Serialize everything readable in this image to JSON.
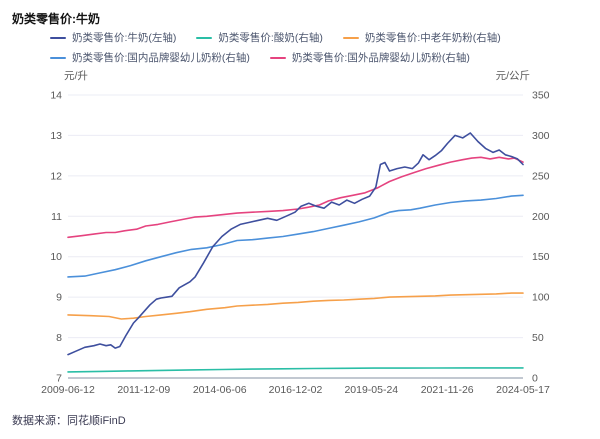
{
  "title": "奶类零售价:牛奶",
  "source": "数据来源：同花顺iFinD",
  "legend": [
    {
      "label": "奶类零售价:牛奶(左轴)",
      "color": "#3E4F9E"
    },
    {
      "label": "奶类零售价:酸奶(右轴)",
      "color": "#2ABEA6"
    },
    {
      "label": "奶类零售价:中老年奶粉(右轴)",
      "color": "#F6A04A"
    },
    {
      "label": "奶类零售价:国内品牌婴幼儿奶粉(右轴)",
      "color": "#4B90DA"
    },
    {
      "label": "奶类零售价:国外品牌婴幼儿奶粉(右轴)",
      "color": "#E5437F"
    }
  ],
  "colors": {
    "grid": "#EBECF4",
    "axis_line": "#AEB6C2",
    "tick_text": "#595959"
  },
  "chart_data": {
    "type": "line",
    "title": "奶类零售价:牛奶",
    "left_axis": {
      "unit": "元/升",
      "range": [
        7,
        14
      ],
      "ticks": [
        7,
        8,
        9,
        10,
        11,
        12,
        13,
        14
      ]
    },
    "right_axis": {
      "unit": "元/公斤",
      "range": [
        0,
        350
      ],
      "ticks": [
        0,
        50,
        100,
        150,
        200,
        250,
        300,
        350
      ]
    },
    "x_tick_labels": [
      "2009-06-12",
      "2011-12-09",
      "2014-06-06",
      "2016-12-02",
      "2019-05-24",
      "2021-11-26",
      "2024-05-17"
    ],
    "x_range": [
      2009.45,
      2024.38
    ],
    "grid": "horizontal",
    "legend_position": "top",
    "series": [
      {
        "name": "奶类零售价:酸奶(右轴)",
        "axis": "right",
        "color": "#2ABEA6",
        "points": [
          [
            2009.45,
            7.5
          ],
          [
            2010.5,
            8.2
          ],
          [
            2011.5,
            8.8
          ],
          [
            2012.5,
            9.4
          ],
          [
            2013.5,
            10.0
          ],
          [
            2014.5,
            10.5
          ],
          [
            2015.5,
            11.0
          ],
          [
            2016.5,
            11.4
          ],
          [
            2017.5,
            11.7
          ],
          [
            2018.5,
            12.0
          ],
          [
            2019.5,
            12.2
          ],
          [
            2020.5,
            12.3
          ],
          [
            2021.5,
            12.4
          ],
          [
            2022.5,
            12.5
          ],
          [
            2023.5,
            12.5
          ],
          [
            2024.38,
            12.5
          ]
        ]
      },
      {
        "name": "奶类零售价:中老年奶粉(右轴)",
        "axis": "right",
        "color": "#F6A04A",
        "points": [
          [
            2009.45,
            78
          ],
          [
            2010.2,
            77
          ],
          [
            2010.8,
            76
          ],
          [
            2011.2,
            73
          ],
          [
            2011.6,
            74
          ],
          [
            2012.0,
            76
          ],
          [
            2012.5,
            78
          ],
          [
            2013.0,
            80
          ],
          [
            2013.45,
            82
          ],
          [
            2014.0,
            85
          ],
          [
            2014.6,
            87
          ],
          [
            2015.0,
            89
          ],
          [
            2015.5,
            90
          ],
          [
            2016.0,
            91
          ],
          [
            2016.5,
            92.5
          ],
          [
            2017.0,
            93.5
          ],
          [
            2017.5,
            95
          ],
          [
            2018.0,
            96
          ],
          [
            2018.5,
            96.5
          ],
          [
            2019.0,
            97.5
          ],
          [
            2019.5,
            98.5
          ],
          [
            2020.0,
            100
          ],
          [
            2020.5,
            100.5
          ],
          [
            2021.0,
            101
          ],
          [
            2021.5,
            101.5
          ],
          [
            2022.0,
            102.5
          ],
          [
            2022.5,
            103
          ],
          [
            2023.0,
            103.5
          ],
          [
            2023.5,
            104
          ],
          [
            2024.0,
            105
          ],
          [
            2024.38,
            105
          ]
        ]
      },
      {
        "name": "奶类零售价:国内品牌婴幼儿奶粉(右轴)",
        "axis": "right",
        "color": "#4B90DA",
        "points": [
          [
            2009.45,
            125
          ],
          [
            2010.0,
            126
          ],
          [
            2010.5,
            130
          ],
          [
            2011.0,
            134
          ],
          [
            2011.5,
            139
          ],
          [
            2012.0,
            145
          ],
          [
            2012.5,
            150
          ],
          [
            2013.0,
            155
          ],
          [
            2013.5,
            159
          ],
          [
            2014.0,
            161
          ],
          [
            2014.5,
            165
          ],
          [
            2015.0,
            170
          ],
          [
            2015.5,
            171
          ],
          [
            2016.0,
            173
          ],
          [
            2016.5,
            175
          ],
          [
            2017.0,
            178
          ],
          [
            2017.5,
            181
          ],
          [
            2018.0,
            185
          ],
          [
            2018.5,
            189
          ],
          [
            2019.0,
            193
          ],
          [
            2019.5,
            198
          ],
          [
            2020.0,
            205
          ],
          [
            2020.3,
            207
          ],
          [
            2020.7,
            208
          ],
          [
            2021.0,
            210
          ],
          [
            2021.5,
            214
          ],
          [
            2022.0,
            217
          ],
          [
            2022.5,
            219
          ],
          [
            2023.0,
            220
          ],
          [
            2023.5,
            222
          ],
          [
            2024.0,
            225
          ],
          [
            2024.38,
            226
          ]
        ]
      },
      {
        "name": "奶类零售价:国外品牌婴幼儿奶粉(右轴)",
        "axis": "right",
        "color": "#E5437F",
        "points": [
          [
            2009.45,
            174
          ],
          [
            2009.9,
            176
          ],
          [
            2010.3,
            178
          ],
          [
            2010.7,
            180
          ],
          [
            2011.0,
            180
          ],
          [
            2011.3,
            182
          ],
          [
            2011.7,
            184
          ],
          [
            2012.0,
            188
          ],
          [
            2012.4,
            190
          ],
          [
            2012.8,
            193
          ],
          [
            2013.2,
            196
          ],
          [
            2013.6,
            199
          ],
          [
            2014.0,
            200
          ],
          [
            2014.5,
            202
          ],
          [
            2015.0,
            204
          ],
          [
            2015.5,
            205
          ],
          [
            2016.0,
            206
          ],
          [
            2016.5,
            207
          ],
          [
            2017.0,
            209
          ],
          [
            2017.3,
            211
          ],
          [
            2017.7,
            214
          ],
          [
            2018.0,
            219
          ],
          [
            2018.4,
            223
          ],
          [
            2018.8,
            226
          ],
          [
            2019.2,
            229
          ],
          [
            2019.6,
            235
          ],
          [
            2020.0,
            243
          ],
          [
            2020.4,
            249
          ],
          [
            2020.8,
            254
          ],
          [
            2021.2,
            259
          ],
          [
            2021.6,
            263
          ],
          [
            2022.0,
            267
          ],
          [
            2022.4,
            270
          ],
          [
            2022.7,
            272
          ],
          [
            2023.0,
            273
          ],
          [
            2023.3,
            271
          ],
          [
            2023.6,
            273
          ],
          [
            2023.9,
            271
          ],
          [
            2024.1,
            272
          ],
          [
            2024.38,
            267
          ]
        ]
      },
      {
        "name": "奶类零售价:牛奶(左轴)",
        "axis": "left",
        "color": "#3E4F9E",
        "points": [
          [
            2009.45,
            7.58
          ],
          [
            2009.7,
            7.66
          ],
          [
            2010.0,
            7.76
          ],
          [
            2010.3,
            7.8
          ],
          [
            2010.5,
            7.84
          ],
          [
            2010.7,
            7.8
          ],
          [
            2010.85,
            7.82
          ],
          [
            2011.0,
            7.74
          ],
          [
            2011.15,
            7.78
          ],
          [
            2011.35,
            8.05
          ],
          [
            2011.6,
            8.36
          ],
          [
            2011.75,
            8.48
          ],
          [
            2011.95,
            8.65
          ],
          [
            2012.14,
            8.81
          ],
          [
            2012.35,
            8.95
          ],
          [
            2012.5,
            8.98
          ],
          [
            2012.7,
            9.0
          ],
          [
            2012.86,
            9.02
          ],
          [
            2013.1,
            9.23
          ],
          [
            2013.45,
            9.38
          ],
          [
            2013.62,
            9.5
          ],
          [
            2013.9,
            9.85
          ],
          [
            2014.2,
            10.25
          ],
          [
            2014.5,
            10.5
          ],
          [
            2014.8,
            10.68
          ],
          [
            2015.1,
            10.8
          ],
          [
            2015.4,
            10.85
          ],
          [
            2015.7,
            10.9
          ],
          [
            2016.0,
            10.95
          ],
          [
            2016.3,
            10.9
          ],
          [
            2016.6,
            11.0
          ],
          [
            2016.9,
            11.1
          ],
          [
            2017.1,
            11.25
          ],
          [
            2017.35,
            11.32
          ],
          [
            2017.6,
            11.25
          ],
          [
            2017.85,
            11.2
          ],
          [
            2018.1,
            11.35
          ],
          [
            2018.35,
            11.28
          ],
          [
            2018.6,
            11.4
          ],
          [
            2018.85,
            11.32
          ],
          [
            2019.1,
            11.42
          ],
          [
            2019.35,
            11.5
          ],
          [
            2019.55,
            11.72
          ],
          [
            2019.7,
            12.28
          ],
          [
            2019.85,
            12.33
          ],
          [
            2020.0,
            12.12
          ],
          [
            2020.25,
            12.18
          ],
          [
            2020.5,
            12.22
          ],
          [
            2020.75,
            12.18
          ],
          [
            2020.95,
            12.32
          ],
          [
            2021.1,
            12.52
          ],
          [
            2021.3,
            12.4
          ],
          [
            2021.5,
            12.5
          ],
          [
            2021.7,
            12.62
          ],
          [
            2021.9,
            12.8
          ],
          [
            2022.15,
            13.0
          ],
          [
            2022.4,
            12.94
          ],
          [
            2022.65,
            13.06
          ],
          [
            2022.9,
            12.85
          ],
          [
            2023.15,
            12.68
          ],
          [
            2023.4,
            12.58
          ],
          [
            2023.6,
            12.64
          ],
          [
            2023.8,
            12.52
          ],
          [
            2024.0,
            12.48
          ],
          [
            2024.2,
            12.42
          ],
          [
            2024.38,
            12.28
          ]
        ]
      }
    ]
  }
}
